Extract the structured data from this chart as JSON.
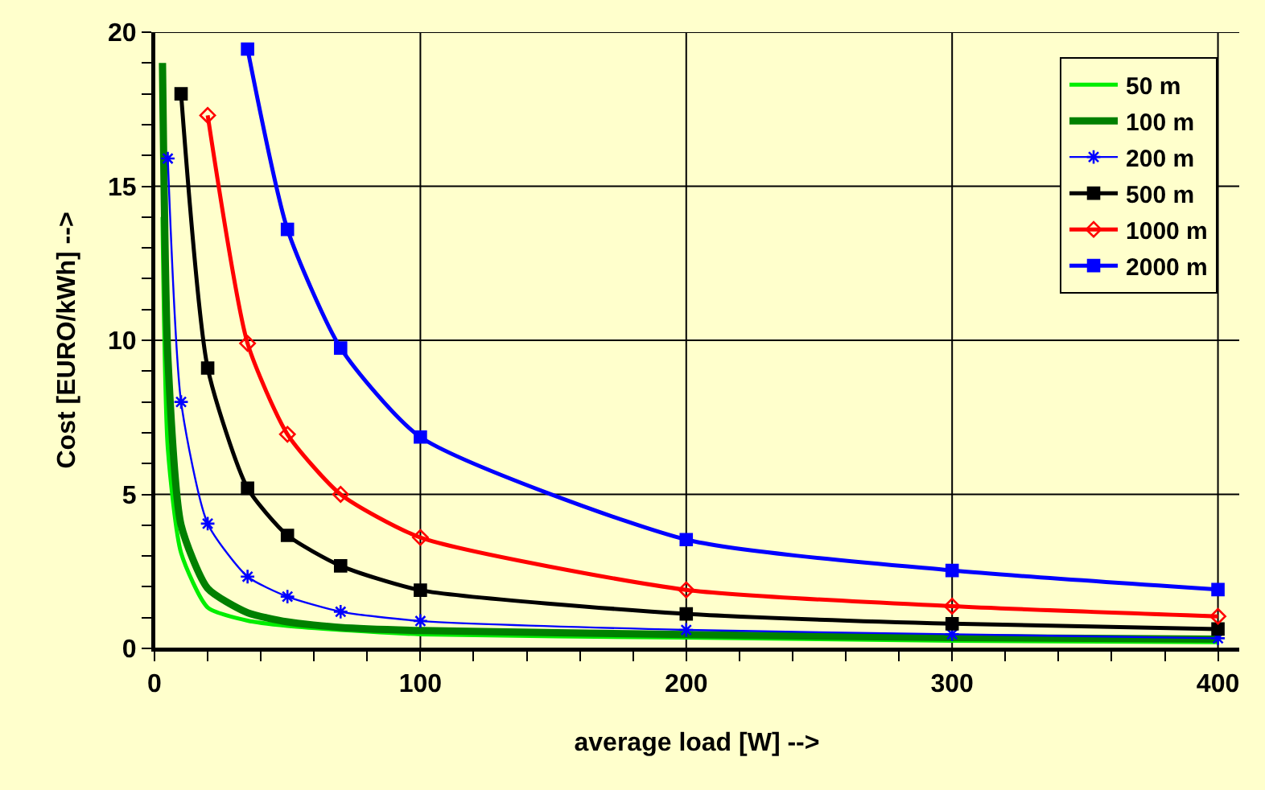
{
  "chart_data": {
    "type": "line",
    "xlabel": "average load [W] -->",
    "ylabel": "Cost [EURO/kWh] -->",
    "xlim": [
      0,
      408
    ],
    "ylim": [
      0,
      20
    ],
    "xticks": [
      0,
      {
        "value": 20,
        "label": null
      },
      {
        "value": 40,
        "label": null
      },
      {
        "value": 60,
        "label": null
      },
      {
        "value": 80,
        "label": null
      },
      100,
      {
        "value": 120,
        "label": null
      },
      {
        "value": 140,
        "label": null
      },
      {
        "value": 160,
        "label": null
      },
      {
        "value": 180,
        "label": null
      },
      200,
      {
        "value": 220,
        "label": null
      },
      {
        "value": 240,
        "label": null
      },
      {
        "value": 260,
        "label": null
      },
      {
        "value": 280,
        "label": null
      },
      300,
      {
        "value": 320,
        "label": null
      },
      {
        "value": 340,
        "label": null
      },
      {
        "value": 360,
        "label": null
      },
      {
        "value": 380,
        "label": null
      },
      400
    ],
    "yticks": [
      0,
      {
        "value": 1,
        "label": null
      },
      {
        "value": 2,
        "label": null
      },
      {
        "value": 3,
        "label": null
      },
      {
        "value": 4,
        "label": null
      },
      5,
      {
        "value": 6,
        "label": null
      },
      {
        "value": 7,
        "label": null
      },
      {
        "value": 8,
        "label": null
      },
      {
        "value": 9,
        "label": null
      },
      10,
      {
        "value": 11,
        "label": null
      },
      {
        "value": 12,
        "label": null
      },
      {
        "value": 13,
        "label": null
      },
      {
        "value": 14,
        "label": null
      },
      15,
      {
        "value": 16,
        "label": null
      },
      {
        "value": 17,
        "label": null
      },
      {
        "value": 18,
        "label": null
      },
      {
        "value": 19,
        "label": null
      },
      20
    ],
    "grid": true,
    "legend": "top right",
    "line_style": "solid",
    "series": [
      {
        "name": "50 m",
        "color": "#00ee00",
        "marker": "none",
        "x": [
          3,
          5,
          10,
          20,
          35,
          50,
          70,
          100,
          200,
          300,
          400
        ],
        "values": [
          14,
          6.5,
          3.1,
          1.33,
          0.9,
          0.73,
          0.6,
          0.46,
          0.35,
          0.25,
          0.2
        ]
      },
      {
        "name": "100 m",
        "color": "#008000",
        "marker": "none",
        "x": [
          3,
          5,
          10,
          20,
          35,
          50,
          70,
          100,
          200,
          300,
          400
        ],
        "values": [
          19,
          9.5,
          4.0,
          1.95,
          1.16,
          0.86,
          0.68,
          0.58,
          0.45,
          0.35,
          0.3
        ]
      },
      {
        "name": "200 m",
        "color": "#0000ff",
        "marker": "cross",
        "x": [
          5,
          10,
          20,
          35,
          50,
          70,
          100,
          200,
          300,
          400
        ],
        "values": [
          15.9,
          8.0,
          4.05,
          2.33,
          1.68,
          1.19,
          0.89,
          0.6,
          0.46,
          0.33
        ]
      },
      {
        "name": "500 m",
        "color": "#000000",
        "marker": "square",
        "x": [
          10,
          20,
          35,
          50,
          70,
          100,
          200,
          300,
          400
        ],
        "values": [
          18.0,
          9.1,
          5.2,
          3.67,
          2.68,
          1.89,
          1.12,
          0.8,
          0.63
        ]
      },
      {
        "name": "1000 m",
        "color": "#ff0000",
        "marker": "diamond",
        "x": [
          20,
          35,
          50,
          70,
          100,
          200,
          300,
          400
        ],
        "values": [
          17.3,
          9.9,
          6.95,
          5.0,
          3.6,
          1.9,
          1.37,
          1.04
        ]
      },
      {
        "name": "2000 m",
        "color": "#0000ff",
        "marker": "square",
        "x": [
          35,
          50,
          70,
          100,
          200,
          300,
          400
        ],
        "values": [
          19.45,
          13.6,
          9.75,
          6.86,
          3.53,
          2.53,
          1.91
        ]
      }
    ]
  }
}
